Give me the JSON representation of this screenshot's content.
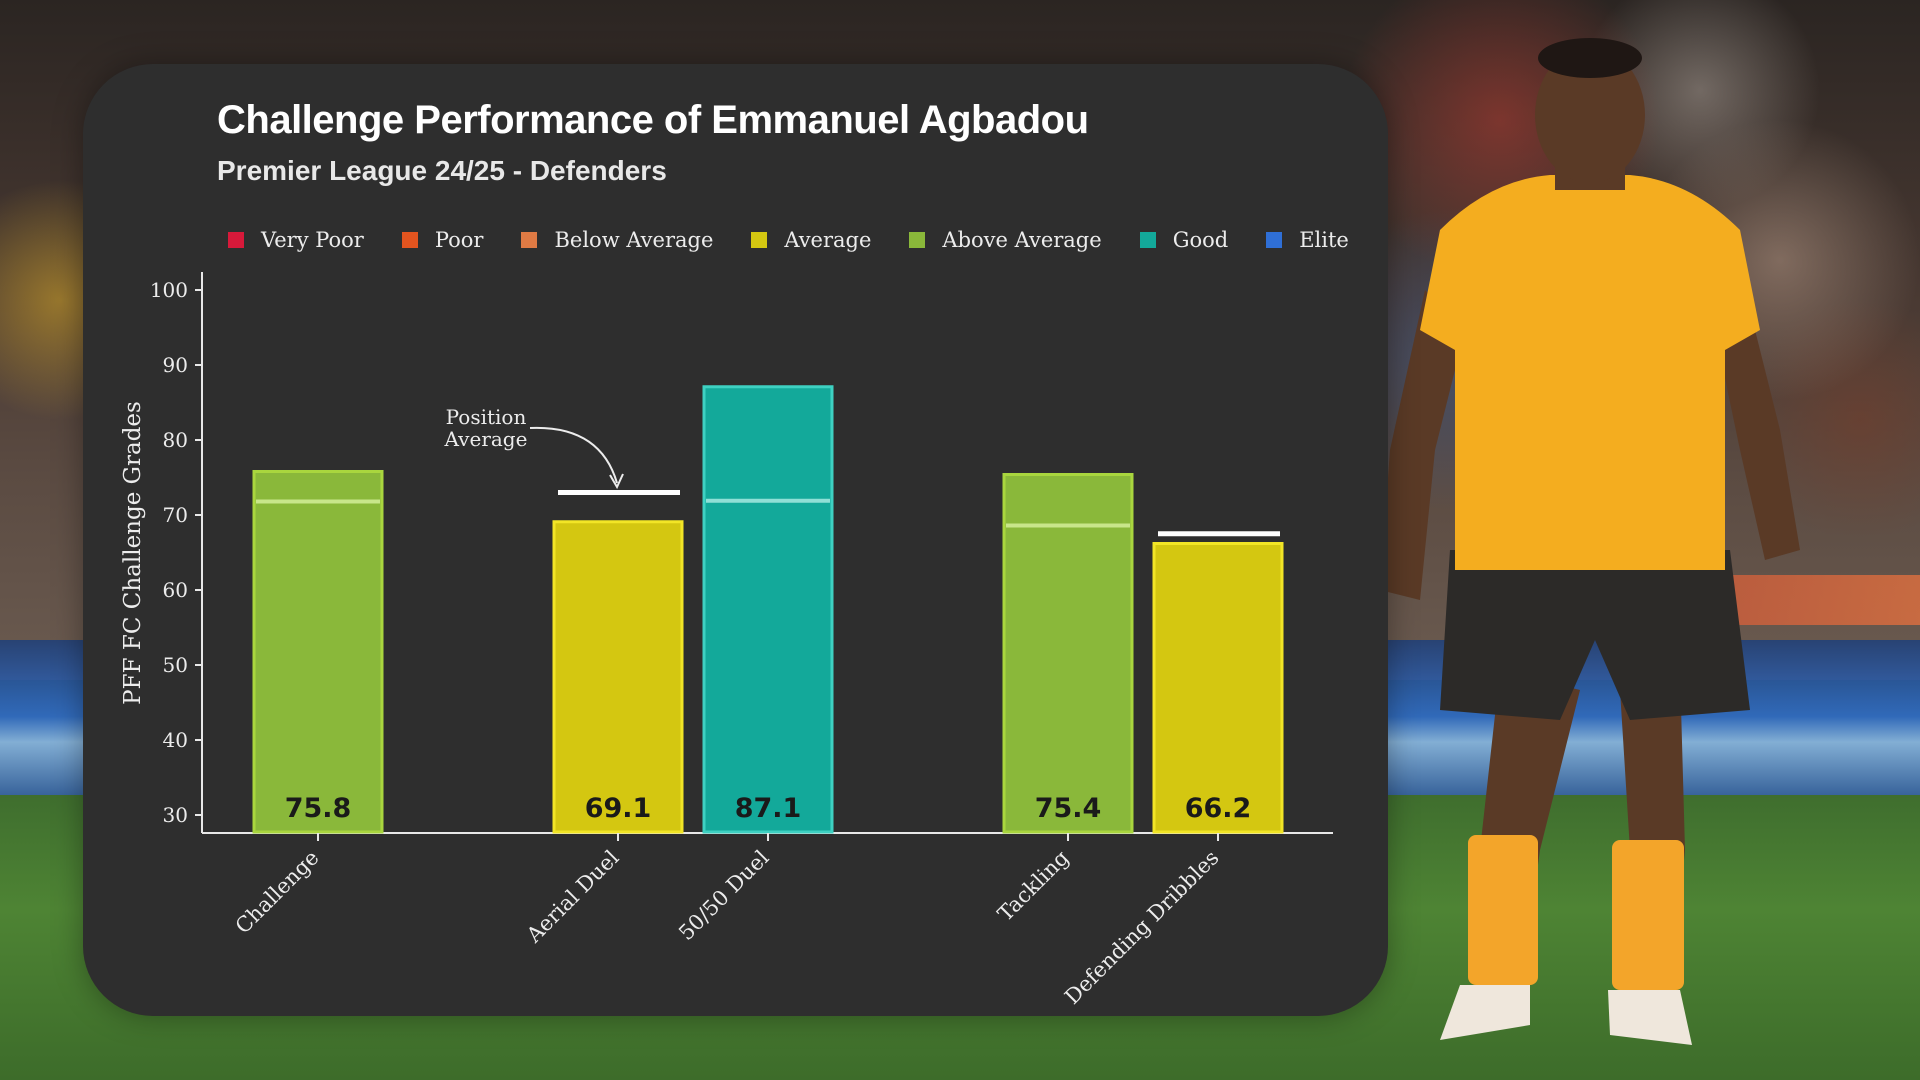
{
  "title": "Challenge Performance of Emmanuel Agbadou",
  "subtitle": "Premier League 24/25 - Defenders",
  "legend": [
    {
      "label": "Very Poor",
      "color": "#d7193a"
    },
    {
      "label": "Poor",
      "color": "#e2541f"
    },
    {
      "label": "Below Average",
      "color": "#df7a44"
    },
    {
      "label": "Average",
      "color": "#d4c711"
    },
    {
      "label": "Above Average",
      "color": "#8ab83a"
    },
    {
      "label": "Good",
      "color": "#13a99a"
    },
    {
      "label": "Elite",
      "color": "#2f6fd6"
    }
  ],
  "annotation": "Position\nAverage",
  "chart_data": {
    "type": "bar",
    "title": "Challenge Performance of Emmanuel Agbadou",
    "subtitle": "Premier League 24/25 - Defenders",
    "ylabel": "PFF FC Challenge Grades",
    "xlabel": "",
    "ylim": [
      30,
      100
    ],
    "yticks": [
      30,
      40,
      50,
      60,
      70,
      80,
      90,
      100
    ],
    "grid": false,
    "legend_position": "top",
    "categories": [
      "Challenge",
      "Aerial Duel",
      "50/50 Duel",
      "Tackling",
      "Defending Dribbles"
    ],
    "slots": [
      0,
      2,
      3,
      5,
      6
    ],
    "values": [
      75.8,
      69.1,
      87.1,
      75.4,
      66.2
    ],
    "value_labels": [
      "75.8",
      "69.1",
      "87.1",
      "75.4",
      "66.2"
    ],
    "position_average": [
      71.8,
      73.0,
      71.9,
      68.6,
      67.5
    ],
    "bar_colors": [
      "#8ab83a",
      "#d4c711",
      "#13a99a",
      "#8ab83a",
      "#d4c711"
    ],
    "bar_edge_colors": [
      "#a9d63e",
      "#f2e526",
      "#3ed1c2",
      "#a9d63e",
      "#f2e526"
    ],
    "average_line_colors": [
      "#c8e68a",
      "#ffffff",
      "#8fe0d6",
      "#c8e68a",
      "#ffffff"
    ]
  }
}
